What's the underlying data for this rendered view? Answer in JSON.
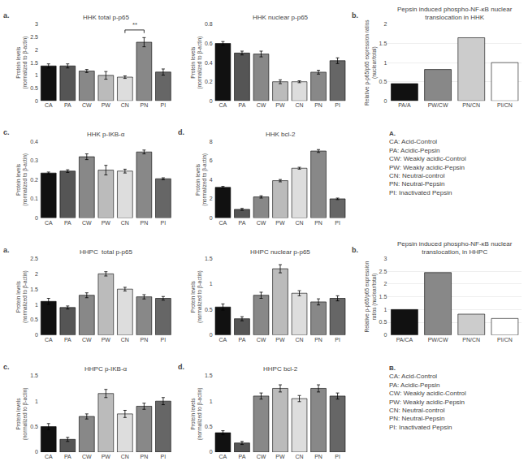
{
  "chart_data": [
    {
      "type": "bar",
      "title": "HHK total p-p65",
      "categories": [
        "CA",
        "PA",
        "CW",
        "PW",
        "CN",
        "PN",
        "PI"
      ],
      "values": [
        1.37,
        1.37,
        1.17,
        1.0,
        0.93,
        2.3,
        1.13
      ],
      "errors": [
        0.08,
        0.08,
        0.06,
        0.15,
        0.05,
        0.18,
        0.12
      ],
      "ylim": [
        0,
        3.0
      ],
      "yticks": [
        0,
        0.5,
        1,
        1.5,
        2,
        2.5,
        3
      ],
      "ylabel": "Protein levels\n(normalized to β-actin)",
      "colors": [
        "#111111",
        "#555555",
        "#888888",
        "#bbbbbb",
        "#dddddd",
        "#888888",
        "#666666"
      ],
      "grid": false,
      "annotations": [
        {
          "text": "a."
        },
        {
          "text": "**",
          "between": [
            "CN",
            "PN"
          ]
        }
      ]
    },
    {
      "type": "bar",
      "title": "HHK nuclear p-p65",
      "categories": [
        "CA",
        "PA",
        "CW",
        "PW",
        "CN",
        "PN",
        "PI"
      ],
      "values": [
        0.6,
        0.5,
        0.49,
        0.2,
        0.2,
        0.3,
        0.42
      ],
      "errors": [
        0.02,
        0.02,
        0.03,
        0.02,
        0.01,
        0.02,
        0.03
      ],
      "ylim": [
        0,
        0.8
      ],
      "yticks": [
        0,
        0.2,
        0.4,
        0.6,
        0.8
      ],
      "ylabel": "Protein levels\n(normalized to β-actin)",
      "colors": [
        "#111111",
        "#555555",
        "#888888",
        "#bbbbbb",
        "#dddddd",
        "#888888",
        "#666666"
      ],
      "grid": false
    },
    {
      "type": "bar",
      "title": "Pepsin induced phospho-NF-κB nuclear\ntranslocation in HHK",
      "categories": [
        "PA/A",
        "PW/CW",
        "PN/CN",
        "PI/CN"
      ],
      "values": [
        0.45,
        0.82,
        1.65,
        1.0
      ],
      "ylim": [
        0,
        2.0
      ],
      "yticks": [
        0,
        0.5,
        1,
        1.5,
        2
      ],
      "ylabel": "Relative p-p65/p65 expression ratios\n(nuclear/total)",
      "colors": [
        "#111111",
        "#888888",
        "#cccccc",
        "#ffffff"
      ],
      "grid": true,
      "annotations": [
        {
          "text": "b."
        }
      ]
    },
    {
      "type": "bar",
      "title": "HHK p-IKB-α",
      "categories": [
        "CA",
        "PA",
        "CW",
        "PW",
        "CN",
        "PN",
        "PI"
      ],
      "values": [
        0.235,
        0.245,
        0.32,
        0.25,
        0.245,
        0.345,
        0.205
      ],
      "errors": [
        0.005,
        0.007,
        0.015,
        0.025,
        0.01,
        0.01,
        0.005
      ],
      "ylim": [
        0,
        0.4
      ],
      "yticks": [
        0,
        0.1,
        0.2,
        0.3,
        0.4
      ],
      "ylabel": "Protein levels\n(normalized to β-actin)",
      "colors": [
        "#111111",
        "#555555",
        "#888888",
        "#bbbbbb",
        "#dddddd",
        "#888888",
        "#666666"
      ],
      "grid": false,
      "annotations": [
        {
          "text": "c."
        }
      ]
    },
    {
      "type": "bar",
      "title": "HHK bcl-2",
      "categories": [
        "CA",
        "PA",
        "CW",
        "PW",
        "CN",
        "PN",
        "PI"
      ],
      "values": [
        3.2,
        0.9,
        2.2,
        3.9,
        5.2,
        7.0,
        2.0
      ],
      "errors": [
        0.1,
        0.1,
        0.12,
        0.12,
        0.1,
        0.15,
        0.08
      ],
      "ylim": [
        0,
        8
      ],
      "yticks": [
        0,
        2,
        4,
        6,
        8
      ],
      "ylabel": "Protein levels\n(normalized to β-actin)",
      "colors": [
        "#111111",
        "#555555",
        "#888888",
        "#bbbbbb",
        "#dddddd",
        "#888888",
        "#666666"
      ],
      "grid": false,
      "annotations": [
        {
          "text": "d."
        }
      ]
    },
    {
      "type": "bar",
      "title": "HHPC  total p-p65",
      "categories": [
        "CA",
        "PA",
        "CW",
        "PW",
        "CN",
        "PN",
        "PI"
      ],
      "values": [
        1.1,
        0.9,
        1.3,
        2.0,
        1.5,
        1.25,
        1.2
      ],
      "errors": [
        0.1,
        0.05,
        0.08,
        0.07,
        0.06,
        0.07,
        0.06
      ],
      "ylim": [
        0,
        2.5
      ],
      "yticks": [
        0,
        0.5,
        1,
        1.5,
        2,
        2.5
      ],
      "ylabel": "Protein levels\n(normalized to β-actin)",
      "colors": [
        "#111111",
        "#555555",
        "#888888",
        "#bbbbbb",
        "#dddddd",
        "#888888",
        "#666666"
      ],
      "grid": false,
      "annotations": [
        {
          "text": "a."
        }
      ]
    },
    {
      "type": "bar",
      "title": "HHPC nuclear p-p65",
      "categories": [
        "CA",
        "PA",
        "CW",
        "PW",
        "CN",
        "PN",
        "PI"
      ],
      "values": [
        0.55,
        0.32,
        0.78,
        1.3,
        0.82,
        0.65,
        0.72
      ],
      "errors": [
        0.06,
        0.04,
        0.06,
        0.08,
        0.05,
        0.06,
        0.05
      ],
      "ylim": [
        0,
        1.5
      ],
      "yticks": [
        0,
        0.5,
        1,
        1.5
      ],
      "ylabel": "Protein levels\n(normalized to β-actin)",
      "colors": [
        "#111111",
        "#555555",
        "#888888",
        "#bbbbbb",
        "#dddddd",
        "#888888",
        "#666666"
      ],
      "grid": false
    },
    {
      "type": "bar",
      "title": "Pepsin induced phospho-NF-κB nuclear\ntranslocation, in HHPC",
      "categories": [
        "PA/CA",
        "PW/CW",
        "PN/CN",
        "PI/CN"
      ],
      "values": [
        1.0,
        2.45,
        0.82,
        0.65
      ],
      "ylim": [
        0,
        3.0
      ],
      "yticks": [
        0,
        0.5,
        1,
        1.5,
        2,
        2.5,
        3
      ],
      "ylabel": "Relative p-p65/p65 expression\nratios (nuclear/total)",
      "colors": [
        "#111111",
        "#888888",
        "#cccccc",
        "#ffffff"
      ],
      "grid": true,
      "annotations": [
        {
          "text": "b."
        }
      ]
    },
    {
      "type": "bar",
      "title": "HHPC p-IKB-α",
      "categories": [
        "CA",
        "PA",
        "CW",
        "PW",
        "CN",
        "PN",
        "PI"
      ],
      "values": [
        0.5,
        0.25,
        0.7,
        1.15,
        0.75,
        0.9,
        1.0
      ],
      "errors": [
        0.06,
        0.04,
        0.05,
        0.08,
        0.07,
        0.06,
        0.07
      ],
      "ylim": [
        0,
        1.5
      ],
      "yticks": [
        0,
        0.5,
        1,
        1.5
      ],
      "ylabel": "Protein levels\n(normalized to β-actin)",
      "colors": [
        "#111111",
        "#555555",
        "#888888",
        "#bbbbbb",
        "#dddddd",
        "#888888",
        "#666666"
      ],
      "grid": false,
      "annotations": [
        {
          "text": "c."
        }
      ]
    },
    {
      "type": "bar",
      "title": "HHPC bcl-2",
      "categories": [
        "CA",
        "PA",
        "CW",
        "PW",
        "CN",
        "PN",
        "PI"
      ],
      "values": [
        0.38,
        0.18,
        1.1,
        1.25,
        1.05,
        1.25,
        1.1
      ],
      "errors": [
        0.04,
        0.03,
        0.06,
        0.07,
        0.06,
        0.07,
        0.06
      ],
      "ylim": [
        0,
        1.5
      ],
      "yticks": [
        0,
        0.5,
        1,
        1.5
      ],
      "ylabel": "Protein levels\n(normalized to β-actin)",
      "colors": [
        "#111111",
        "#555555",
        "#888888",
        "#bbbbbb",
        "#dddddd",
        "#888888",
        "#666666"
      ],
      "grid": false,
      "annotations": [
        {
          "text": "d."
        }
      ]
    }
  ],
  "annotations": [
    {
      "label": "A.",
      "lines": [
        "CA: Acid-Control",
        "PA: Acidic-Pepsin",
        "CW: Weakly acidic-Control",
        "PW: Weakly acidic-Pepsin",
        "CN: Neutral-control",
        "PN: Neutral-Pepsin",
        "PI: Inactivated Pepsin"
      ]
    },
    {
      "label": "B.",
      "lines": [
        "CA: Acid-Control",
        "PA: Acidic-Pepsin",
        "CW: Weakly acidic-Control",
        "PW: Weakly acidic-Pepsin",
        "CN: Neutral-control",
        "PN: Neutral-Pepsin",
        "PI: Inactivated Pepsin"
      ]
    }
  ]
}
